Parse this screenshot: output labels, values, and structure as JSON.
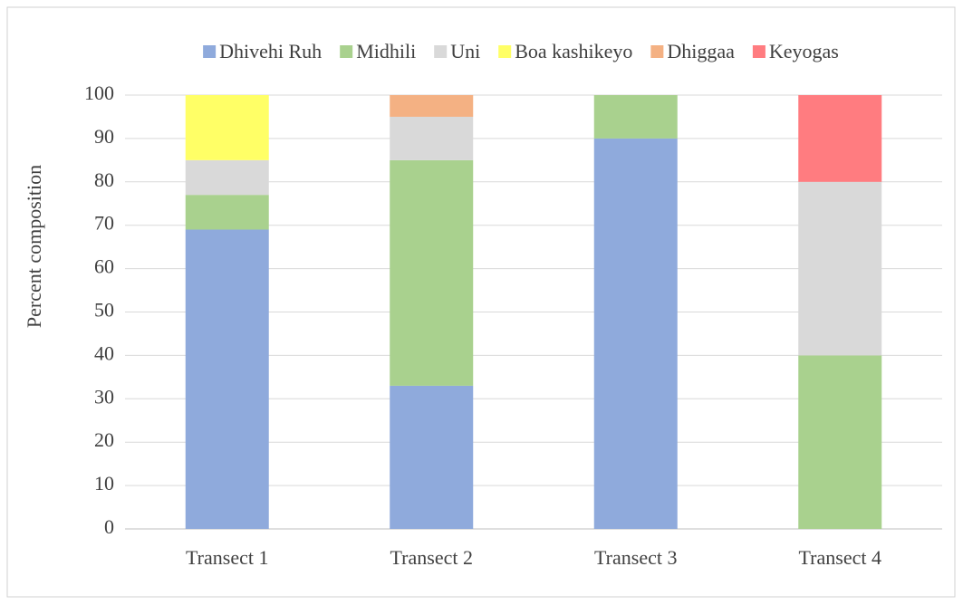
{
  "chart_data": {
    "type": "stacked_bar",
    "y_label": "Percent composition",
    "categories": [
      "Transect 1",
      "Transect 2",
      "Transect 3",
      "Transect 4"
    ],
    "series": [
      {
        "name": "Dhivehi Ruh",
        "color": "#8faadc",
        "values": [
          69,
          33,
          90,
          0
        ]
      },
      {
        "name": "Midhili",
        "color": "#a9d18e",
        "values": [
          8,
          52,
          10,
          40
        ]
      },
      {
        "name": "Uni",
        "color": "#d9d9d9",
        "values": [
          8,
          10,
          0,
          40
        ]
      },
      {
        "name": "Boa kashikeyo",
        "color": "#ffff66",
        "values": [
          15,
          0,
          0,
          0
        ]
      },
      {
        "name": "Dhiggaa",
        "color": "#f4b183",
        "values": [
          0,
          5,
          0,
          0
        ]
      },
      {
        "name": "Keyogas",
        "color": "#ff7c80",
        "values": [
          0,
          0,
          0,
          20
        ]
      }
    ],
    "ylim": [
      0,
      100
    ],
    "yticks": [
      0,
      10,
      20,
      30,
      40,
      50,
      60,
      70,
      80,
      90,
      100
    ],
    "grid": true,
    "legend": "top"
  }
}
